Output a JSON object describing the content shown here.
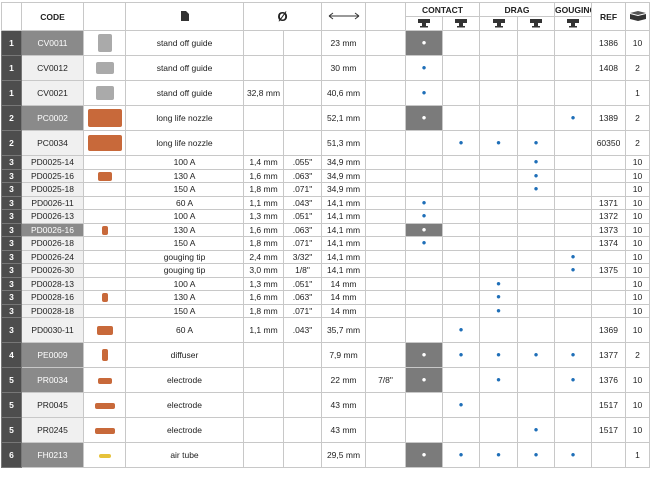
{
  "header": {
    "code": "CODE",
    "diameter": "Ø",
    "contact": "CONTACT",
    "drag": "DRAG",
    "gouging": "GOUGING",
    "ref": "REF"
  },
  "rows": [
    [
      "1",
      "CV0011",
      "stand off guide",
      null,
      null,
      "23 mm",
      null,
      "•",
      null,
      null,
      null,
      null,
      "1386",
      "10"
    ],
    [
      "1",
      "CV0012",
      "stand off guide",
      null,
      null,
      "30 mm",
      null,
      "•",
      null,
      null,
      null,
      null,
      "1408",
      "2"
    ],
    [
      "1",
      "CV0021",
      "stand off guide",
      "32,8 mm",
      null,
      "40,6 mm",
      null,
      "•",
      null,
      null,
      null,
      null,
      null,
      "1"
    ],
    [
      "2",
      "PC0002",
      "long life nozzle",
      null,
      null,
      "52,1 mm",
      null,
      "•",
      null,
      null,
      null,
      "•",
      "1389",
      "2"
    ],
    [
      "2",
      "PC0034",
      "long life nozzle",
      null,
      null,
      "51,3 mm",
      null,
      null,
      "•",
      "•",
      "•",
      null,
      "60350",
      "2"
    ],
    [
      "3",
      "PD0025-14",
      "100 A",
      "1,4 mm",
      ".055\"",
      "34,9 mm",
      null,
      null,
      null,
      null,
      "•",
      null,
      null,
      "10"
    ],
    [
      "3",
      "PD0025-16",
      "130 A",
      "1,6 mm",
      ".063\"",
      "34,9 mm",
      null,
      null,
      null,
      null,
      "•",
      null,
      null,
      "10"
    ],
    [
      "3",
      "PD0025-18",
      "150 A",
      "1,8 mm",
      ".071\"",
      "34,9 mm",
      null,
      null,
      null,
      null,
      "•",
      null,
      null,
      "10"
    ],
    [
      "3",
      "PD0026-11",
      "60 A",
      "1,1 mm",
      ".043\"",
      "14,1 mm",
      null,
      "•",
      null,
      null,
      null,
      null,
      "1371",
      "10"
    ],
    [
      "3",
      "PD0026-13",
      "100 A",
      "1,3 mm",
      ".051\"",
      "14,1 mm",
      null,
      "•",
      null,
      null,
      null,
      null,
      "1372",
      "10"
    ],
    [
      "3",
      "PD0026-16",
      "130 A",
      "1,6 mm",
      ".063\"",
      "14,1 mm",
      null,
      "•",
      null,
      null,
      null,
      null,
      "1373",
      "10"
    ],
    [
      "3",
      "PD0026-18",
      "150 A",
      "1,8 mm",
      ".071\"",
      "14,1 mm",
      null,
      "•",
      null,
      null,
      null,
      null,
      "1374",
      "10"
    ],
    [
      "3",
      "PD0026-24",
      "gouging tip",
      "2,4 mm",
      "3/32\"",
      "14,1 mm",
      null,
      null,
      null,
      null,
      null,
      "•",
      null,
      "10"
    ],
    [
      "3",
      "PD0026-30",
      "gouging tip",
      "3,0 mm",
      "1/8\"",
      "14,1 mm",
      null,
      null,
      null,
      null,
      null,
      "•",
      "1375",
      "10"
    ],
    [
      "3",
      "PD0028-13",
      "100 A",
      "1,3 mm",
      ".051\"",
      "14 mm",
      null,
      null,
      null,
      "•",
      null,
      null,
      null,
      "10"
    ],
    [
      "3",
      "PD0028-16",
      "130 A",
      "1,6 mm",
      ".063\"",
      "14 mm",
      null,
      null,
      null,
      "•",
      null,
      null,
      null,
      "10"
    ],
    [
      "3",
      "PD0028-18",
      "150 A",
      "1,8 mm",
      ".071\"",
      "14 mm",
      null,
      null,
      null,
      "•",
      null,
      null,
      null,
      "10"
    ],
    [
      "3",
      "PD0030-11",
      "60 A",
      "1,1 mm",
      ".043\"",
      "35,7 mm",
      null,
      null,
      "•",
      null,
      null,
      null,
      "1369",
      "10"
    ],
    [
      "4",
      "PE0009",
      "diffuser",
      null,
      null,
      "7,9 mm",
      null,
      "•",
      "•",
      "•",
      "•",
      "•",
      "1377",
      "2"
    ],
    [
      "5",
      "PR0034",
      "electrode",
      null,
      null,
      "22 mm",
      "7/8\"",
      "•",
      null,
      "•",
      null,
      "•",
      "1376",
      "10"
    ],
    [
      "5",
      "PR0045",
      "electrode",
      null,
      null,
      "43 mm",
      null,
      null,
      "•",
      null,
      null,
      null,
      "1517",
      "10"
    ],
    [
      "5",
      "PR0245",
      "electrode",
      null,
      null,
      "43 mm",
      null,
      null,
      null,
      null,
      "•",
      null,
      "1517",
      "10"
    ],
    [
      "6",
      "FH0213",
      "air tube",
      null,
      null,
      "29,5 mm",
      null,
      "•",
      "•",
      "•",
      "•",
      "•",
      null,
      "1"
    ]
  ]
}
